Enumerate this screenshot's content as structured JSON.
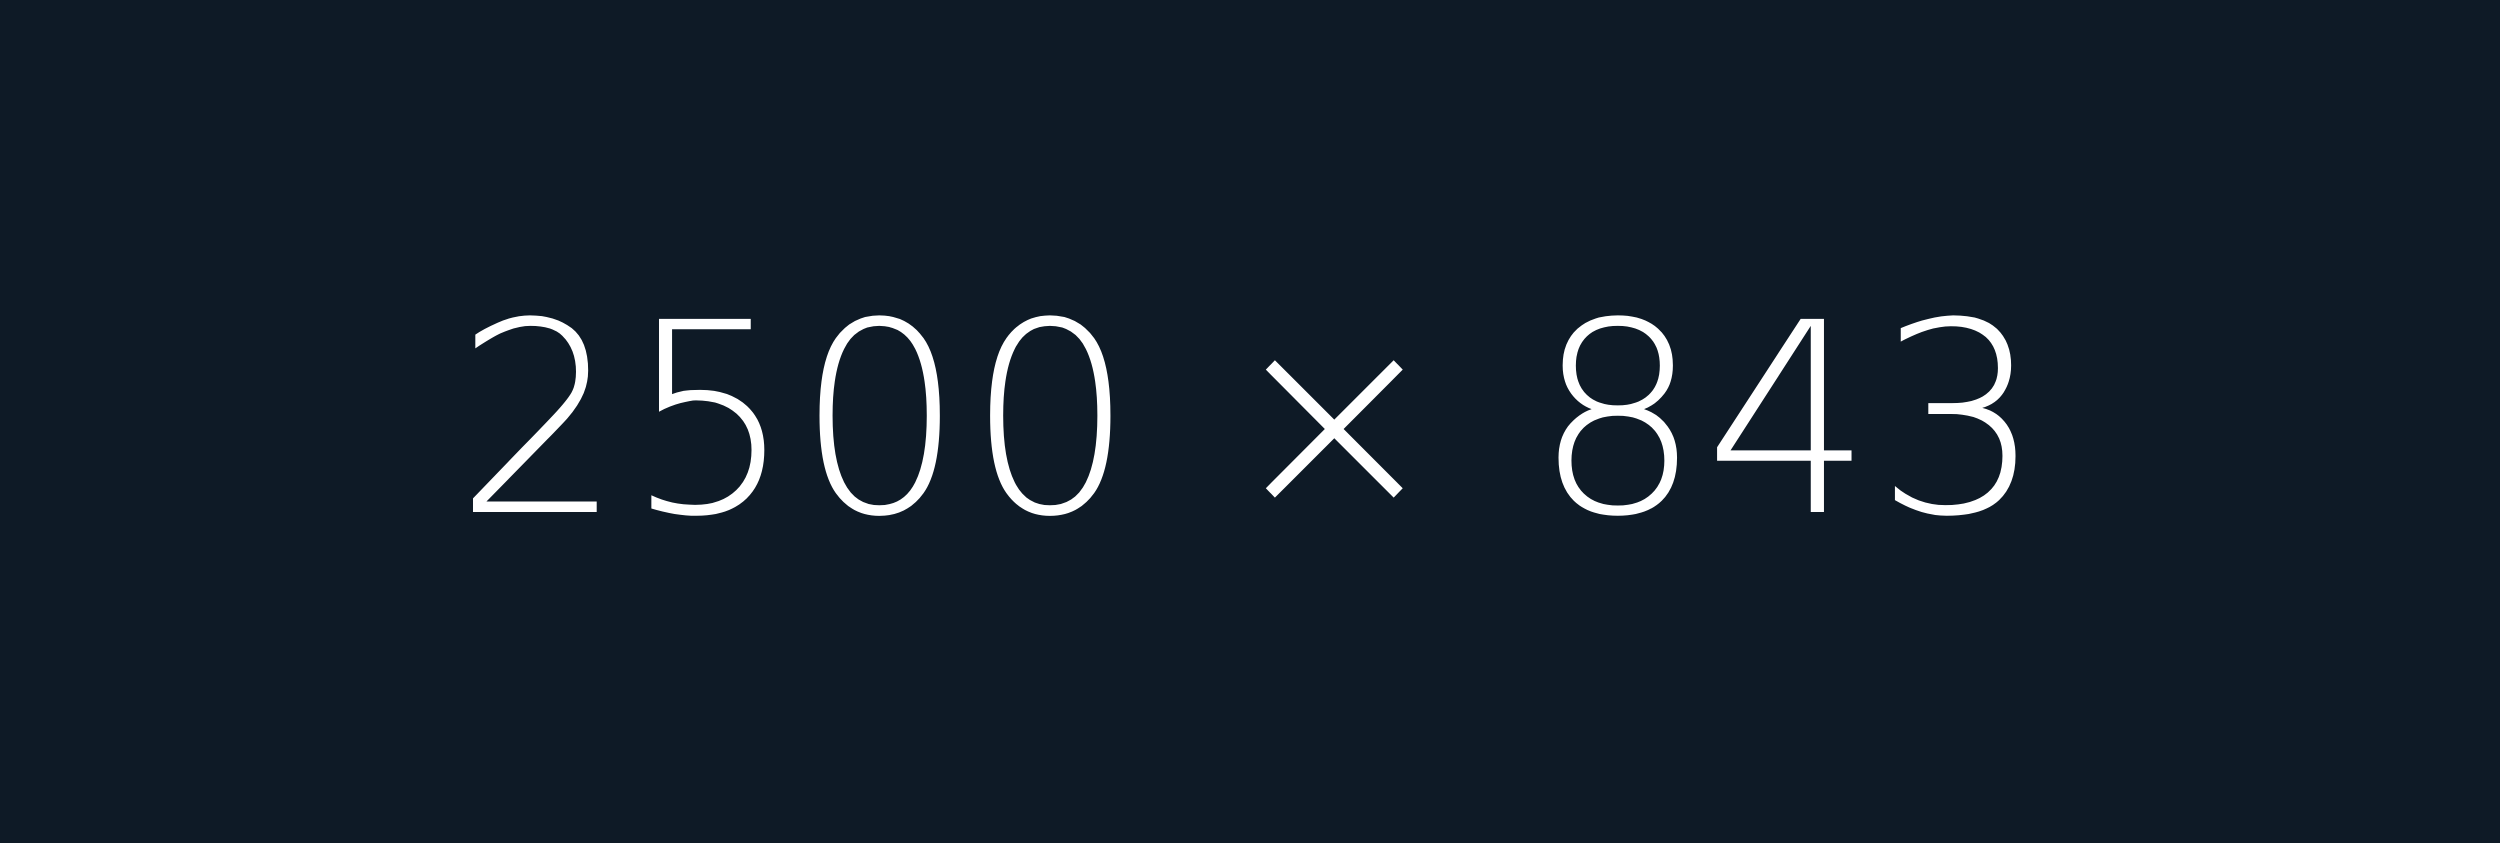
{
  "placeholder": {
    "text": "2500 × 843",
    "background_color": "#0e1a26",
    "text_color": "#ffffff"
  }
}
